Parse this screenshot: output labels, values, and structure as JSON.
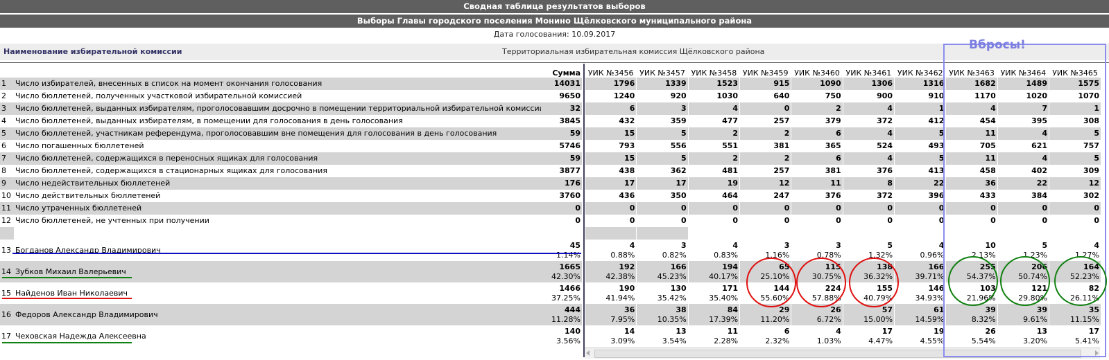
{
  "header": {
    "title": "Сводная таблица результатов выборов",
    "subtitle": "Выборы Главы городского поселения Монино Щёлковского муниципального района",
    "date_label": "Дата голосования:",
    "date_value": "10.09.2017"
  },
  "commission": {
    "label": "Наименование избирательной комиссии",
    "value": "Территориальная избирательная комиссия Щёлковского района"
  },
  "annotation": {
    "label": "Вбросы!",
    "colors": {
      "box": "#8c8cf0",
      "red": "#e01010",
      "green": "#108010",
      "blue": "#1010c0"
    }
  },
  "table": {
    "sum_header": "Сумма",
    "columns": [
      "УИК №3456",
      "УИК №3457",
      "УИК №3458",
      "УИК №3459",
      "УИК №3460",
      "УИК №3461",
      "УИК №3462",
      "УИК №3463",
      "УИК №3464",
      "УИК №3465"
    ],
    "rows": [
      {
        "n": "1",
        "label": "Число избирателей, внесенных в список на момент окончания голосования",
        "sum": "14031",
        "values": [
          "1796",
          "1339",
          "1523",
          "915",
          "1090",
          "1306",
          "1316",
          "1682",
          "1489",
          "1575"
        ]
      },
      {
        "n": "2",
        "label": "Число бюллетеней, полученных участковой избирательной комиссией",
        "sum": "9650",
        "values": [
          "1240",
          "920",
          "1030",
          "640",
          "750",
          "900",
          "910",
          "1170",
          "1020",
          "1070"
        ]
      },
      {
        "n": "3",
        "label": "Число бюллетеней, выданных избирателям, проголосовавшим досрочно в помещении территориальной избирательной комиссии",
        "sum": "32",
        "values": [
          "6",
          "3",
          "4",
          "0",
          "2",
          "4",
          "1",
          "4",
          "7",
          "1"
        ]
      },
      {
        "n": "4",
        "label": "Число бюллетеней, выданных избирателям, в помещении для голосования в день голосования",
        "sum": "3845",
        "values": [
          "432",
          "359",
          "477",
          "257",
          "379",
          "372",
          "412",
          "454",
          "395",
          "308"
        ]
      },
      {
        "n": "5",
        "label": "Число бюллетеней, участникам референдума, проголосовавшим вне помещения для голосования в день голосования",
        "sum": "59",
        "values": [
          "15",
          "5",
          "2",
          "2",
          "6",
          "4",
          "5",
          "11",
          "4",
          "5"
        ]
      },
      {
        "n": "6",
        "label": "Число погашенных бюллетеней",
        "sum": "5746",
        "values": [
          "793",
          "556",
          "551",
          "381",
          "365",
          "524",
          "493",
          "705",
          "621",
          "757"
        ]
      },
      {
        "n": "7",
        "label": "Число бюллетеней, содержащихся в переносных ящиках для голосования",
        "sum": "59",
        "values": [
          "15",
          "5",
          "2",
          "2",
          "6",
          "4",
          "5",
          "11",
          "4",
          "5"
        ]
      },
      {
        "n": "8",
        "label": "Число бюллетеней, содержащихся в стационарных ящиках для голосования",
        "sum": "3877",
        "values": [
          "438",
          "362",
          "481",
          "257",
          "381",
          "376",
          "413",
          "458",
          "402",
          "309"
        ]
      },
      {
        "n": "9",
        "label": "Число недействительных бюллетеней",
        "sum": "176",
        "values": [
          "17",
          "17",
          "19",
          "12",
          "11",
          "8",
          "22",
          "36",
          "22",
          "12"
        ]
      },
      {
        "n": "10",
        "label": "Число действительных бюллетеней",
        "sum": "3760",
        "values": [
          "436",
          "350",
          "464",
          "247",
          "376",
          "372",
          "396",
          "433",
          "384",
          "302"
        ]
      },
      {
        "n": "11",
        "label": "Число утраченных бюллетеней",
        "sum": "0",
        "values": [
          "0",
          "0",
          "0",
          "0",
          "0",
          "0",
          "0",
          "0",
          "0",
          "0"
        ]
      },
      {
        "n": "12",
        "label": "Число бюллетеней, не учтенных при получении",
        "sum": "0",
        "values": [
          "0",
          "0",
          "0",
          "0",
          "0",
          "0",
          "0",
          "0",
          "0",
          "0"
        ]
      }
    ],
    "candidates": [
      {
        "n": "13",
        "label": "Богданов Александр Владимирович",
        "sum": "45",
        "sum_pct": "1.14%",
        "values": [
          "4",
          "3",
          "4",
          "3",
          "3",
          "5",
          "4",
          "10",
          "5",
          "4"
        ],
        "pcts": [
          "0.88%",
          "0.82%",
          "0.83%",
          "1.16%",
          "0.78%",
          "1.32%",
          "0.96%",
          "2.13%",
          "1.23%",
          "1.27%"
        ]
      },
      {
        "n": "14",
        "label": "Зубков Михаил Валерьевич",
        "sum": "1665",
        "sum_pct": "42.30%",
        "values": [
          "192",
          "166",
          "194",
          "65",
          "115",
          "138",
          "166",
          "255",
          "206",
          "164"
        ],
        "pcts": [
          "42.38%",
          "45.23%",
          "40.17%",
          "25.10%",
          "30.75%",
          "36.32%",
          "39.71%",
          "54.37%",
          "50.74%",
          "52.23%"
        ]
      },
      {
        "n": "15",
        "label": "Найденов Иван Николаевич",
        "sum": "1466",
        "sum_pct": "37.25%",
        "values": [
          "190",
          "130",
          "171",
          "144",
          "224",
          "155",
          "146",
          "103",
          "121",
          "82"
        ],
        "pcts": [
          "41.94%",
          "35.42%",
          "35.40%",
          "55.60%",
          "57.88%",
          "40.79%",
          "34.93%",
          "21.96%",
          "29.80%",
          "26.11%"
        ]
      },
      {
        "n": "16",
        "label": "Федоров Александр Владимирович",
        "sum": "444",
        "sum_pct": "11.28%",
        "values": [
          "36",
          "38",
          "84",
          "29",
          "26",
          "57",
          "61",
          "39",
          "39",
          "35"
        ],
        "pcts": [
          "7.95%",
          "10.35%",
          "17.39%",
          "11.20%",
          "6.72%",
          "15.00%",
          "14.59%",
          "8.32%",
          "9.61%",
          "11.15%"
        ]
      },
      {
        "n": "17",
        "label": "Чеховская Надежда Алексеевна",
        "sum": "140",
        "sum_pct": "3.56%",
        "values": [
          "14",
          "13",
          "11",
          "6",
          "4",
          "17",
          "19",
          "26",
          "13",
          "17"
        ],
        "pcts": [
          "3.09%",
          "3.54%",
          "2.28%",
          "2.32%",
          "1.03%",
          "4.47%",
          "4.55%",
          "5.54%",
          "3.20%",
          "5.41%"
        ]
      }
    ]
  }
}
